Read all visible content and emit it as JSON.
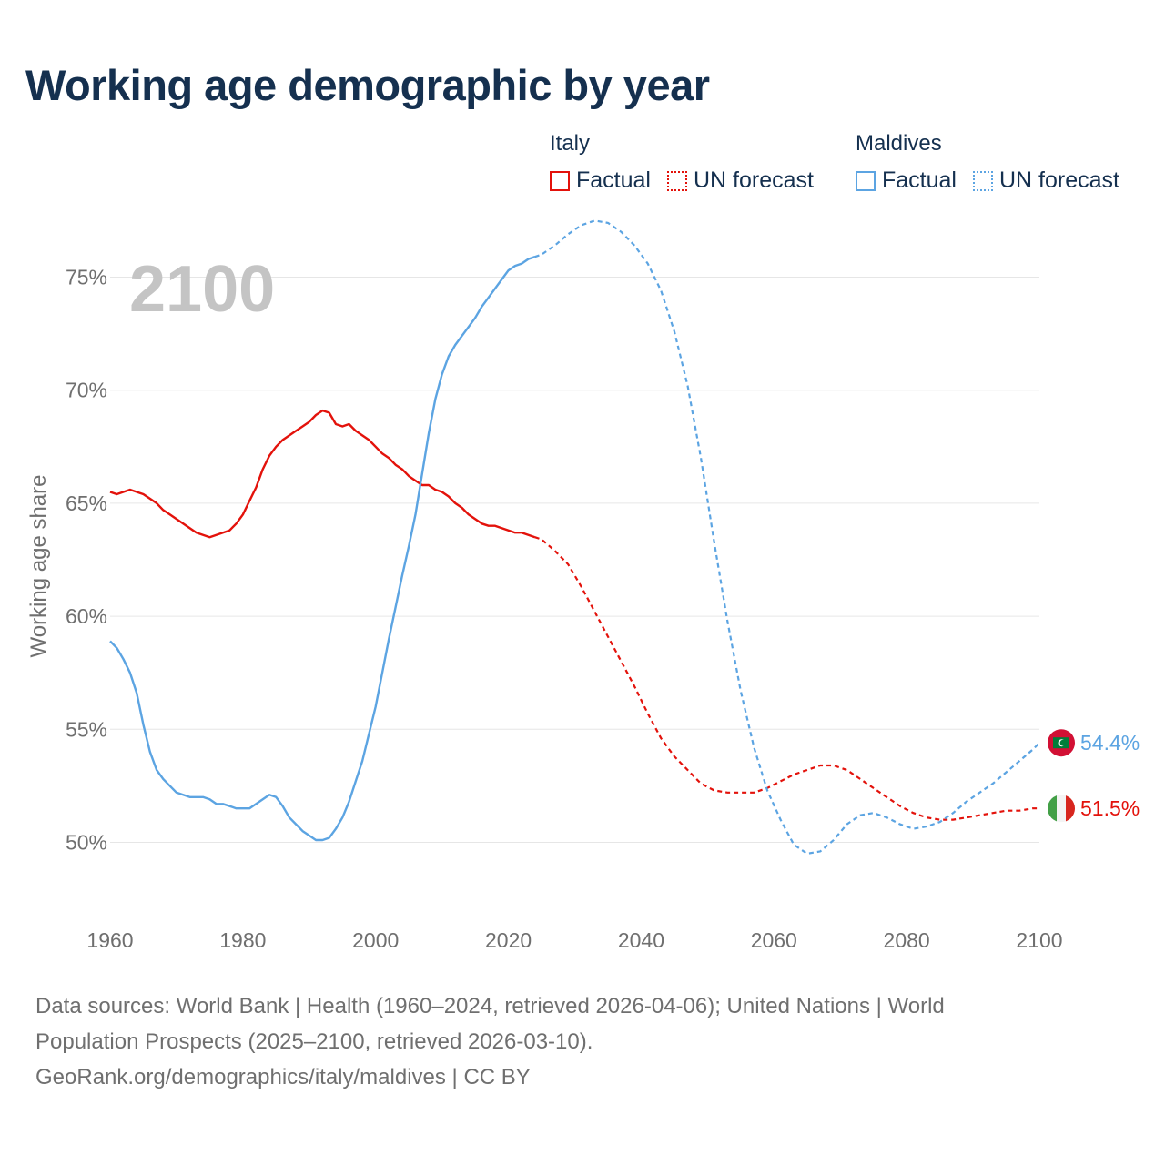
{
  "title": "Working age demographic by year",
  "legend": {
    "groups": [
      {
        "country": "Italy",
        "factual": "Factual",
        "forecast": "UN forecast",
        "color": "#e3120b"
      },
      {
        "country": "Maldives",
        "factual": "Factual",
        "forecast": "UN forecast",
        "color": "#5ca4e2"
      }
    ]
  },
  "year_watermark": "2100",
  "footer": {
    "line1": "Data sources: World Bank | Health (1960–2024, retrieved 2026-04-06); United Nations | World",
    "line2": "Population Prospects (2025–2100, retrieved 2026-03-10).",
    "line3": "GeoRank.org/demographics/italy/maldives | CC BY"
  },
  "colors": {
    "italy": "#e3120b",
    "maldives": "#5ca4e2",
    "grid": "#e6e6e6",
    "axis_text": "#6f6f6f",
    "title": "#15304f"
  },
  "chart_data": {
    "type": "line",
    "ylabel": "Working age share",
    "xlabel": "",
    "xlim": [
      1960,
      2100
    ],
    "ylim": [
      47,
      78
    ],
    "x_ticks": [
      1960,
      1980,
      2000,
      2020,
      2040,
      2060,
      2080,
      2100
    ],
    "y_ticks": [
      50,
      55,
      60,
      65,
      70,
      75
    ],
    "y_tick_labels": [
      "50%",
      "55%",
      "60%",
      "65%",
      "70%",
      "75%"
    ],
    "factual_range": [
      1960,
      2024
    ],
    "forecast_range": [
      2025,
      2100
    ],
    "series": [
      {
        "name": "Italy",
        "color": "#e3120b",
        "end_label": "51.5%",
        "flag_icon": "italy-flag-icon",
        "points": [
          [
            1960,
            65.5
          ],
          [
            1961,
            65.4
          ],
          [
            1962,
            65.5
          ],
          [
            1963,
            65.6
          ],
          [
            1964,
            65.5
          ],
          [
            1965,
            65.4
          ],
          [
            1966,
            65.2
          ],
          [
            1967,
            65.0
          ],
          [
            1968,
            64.7
          ],
          [
            1969,
            64.5
          ],
          [
            1970,
            64.3
          ],
          [
            1971,
            64.1
          ],
          [
            1972,
            63.9
          ],
          [
            1973,
            63.7
          ],
          [
            1974,
            63.6
          ],
          [
            1975,
            63.5
          ],
          [
            1976,
            63.6
          ],
          [
            1977,
            63.7
          ],
          [
            1978,
            63.8
          ],
          [
            1979,
            64.1
          ],
          [
            1980,
            64.5
          ],
          [
            1981,
            65.1
          ],
          [
            1982,
            65.7
          ],
          [
            1983,
            66.5
          ],
          [
            1984,
            67.1
          ],
          [
            1985,
            67.5
          ],
          [
            1986,
            67.8
          ],
          [
            1987,
            68.0
          ],
          [
            1988,
            68.2
          ],
          [
            1989,
            68.4
          ],
          [
            1990,
            68.6
          ],
          [
            1991,
            68.9
          ],
          [
            1992,
            69.1
          ],
          [
            1993,
            69.0
          ],
          [
            1994,
            68.5
          ],
          [
            1995,
            68.4
          ],
          [
            1996,
            68.5
          ],
          [
            1997,
            68.2
          ],
          [
            1998,
            68.0
          ],
          [
            1999,
            67.8
          ],
          [
            2000,
            67.5
          ],
          [
            2001,
            67.2
          ],
          [
            2002,
            67.0
          ],
          [
            2003,
            66.7
          ],
          [
            2004,
            66.5
          ],
          [
            2005,
            66.2
          ],
          [
            2006,
            66.0
          ],
          [
            2007,
            65.8
          ],
          [
            2008,
            65.8
          ],
          [
            2009,
            65.6
          ],
          [
            2010,
            65.5
          ],
          [
            2011,
            65.3
          ],
          [
            2012,
            65.0
          ],
          [
            2013,
            64.8
          ],
          [
            2014,
            64.5
          ],
          [
            2015,
            64.3
          ],
          [
            2016,
            64.1
          ],
          [
            2017,
            64.0
          ],
          [
            2018,
            64.0
          ],
          [
            2019,
            63.9
          ],
          [
            2020,
            63.8
          ],
          [
            2021,
            63.7
          ],
          [
            2022,
            63.7
          ],
          [
            2023,
            63.6
          ],
          [
            2024,
            63.5
          ],
          [
            2025,
            63.4
          ],
          [
            2027,
            62.9
          ],
          [
            2029,
            62.3
          ],
          [
            2031,
            61.3
          ],
          [
            2033,
            60.2
          ],
          [
            2035,
            59.1
          ],
          [
            2037,
            58.0
          ],
          [
            2039,
            56.9
          ],
          [
            2041,
            55.7
          ],
          [
            2043,
            54.6
          ],
          [
            2045,
            53.8
          ],
          [
            2047,
            53.2
          ],
          [
            2049,
            52.6
          ],
          [
            2051,
            52.3
          ],
          [
            2053,
            52.2
          ],
          [
            2055,
            52.2
          ],
          [
            2057,
            52.2
          ],
          [
            2059,
            52.4
          ],
          [
            2061,
            52.7
          ],
          [
            2063,
            53.0
          ],
          [
            2065,
            53.2
          ],
          [
            2067,
            53.4
          ],
          [
            2069,
            53.4
          ],
          [
            2071,
            53.2
          ],
          [
            2073,
            52.8
          ],
          [
            2075,
            52.4
          ],
          [
            2077,
            52.0
          ],
          [
            2079,
            51.6
          ],
          [
            2081,
            51.3
          ],
          [
            2083,
            51.1
          ],
          [
            2085,
            51.0
          ],
          [
            2087,
            51.0
          ],
          [
            2089,
            51.1
          ],
          [
            2091,
            51.2
          ],
          [
            2093,
            51.3
          ],
          [
            2095,
            51.4
          ],
          [
            2097,
            51.4
          ],
          [
            2099,
            51.5
          ],
          [
            2100,
            51.5
          ]
        ]
      },
      {
        "name": "Maldives",
        "color": "#5ca4e2",
        "end_label": "54.4%",
        "flag_icon": "maldives-flag-icon",
        "points": [
          [
            1960,
            58.9
          ],
          [
            1961,
            58.6
          ],
          [
            1962,
            58.1
          ],
          [
            1963,
            57.5
          ],
          [
            1964,
            56.6
          ],
          [
            1965,
            55.2
          ],
          [
            1966,
            54.0
          ],
          [
            1967,
            53.2
          ],
          [
            1968,
            52.8
          ],
          [
            1969,
            52.5
          ],
          [
            1970,
            52.2
          ],
          [
            1971,
            52.1
          ],
          [
            1972,
            52.0
          ],
          [
            1973,
            52.0
          ],
          [
            1974,
            52.0
          ],
          [
            1975,
            51.9
          ],
          [
            1976,
            51.7
          ],
          [
            1977,
            51.7
          ],
          [
            1978,
            51.6
          ],
          [
            1979,
            51.5
          ],
          [
            1980,
            51.5
          ],
          [
            1981,
            51.5
          ],
          [
            1982,
            51.7
          ],
          [
            1983,
            51.9
          ],
          [
            1984,
            52.1
          ],
          [
            1985,
            52.0
          ],
          [
            1986,
            51.6
          ],
          [
            1987,
            51.1
          ],
          [
            1988,
            50.8
          ],
          [
            1989,
            50.5
          ],
          [
            1990,
            50.3
          ],
          [
            1991,
            50.1
          ],
          [
            1992,
            50.1
          ],
          [
            1993,
            50.2
          ],
          [
            1994,
            50.6
          ],
          [
            1995,
            51.1
          ],
          [
            1996,
            51.8
          ],
          [
            1997,
            52.7
          ],
          [
            1998,
            53.6
          ],
          [
            1999,
            54.8
          ],
          [
            2000,
            56.0
          ],
          [
            2001,
            57.5
          ],
          [
            2002,
            59.0
          ],
          [
            2003,
            60.4
          ],
          [
            2004,
            61.8
          ],
          [
            2005,
            63.1
          ],
          [
            2006,
            64.5
          ],
          [
            2007,
            66.3
          ],
          [
            2008,
            68.1
          ],
          [
            2009,
            69.6
          ],
          [
            2010,
            70.7
          ],
          [
            2011,
            71.5
          ],
          [
            2012,
            72.0
          ],
          [
            2013,
            72.4
          ],
          [
            2014,
            72.8
          ],
          [
            2015,
            73.2
          ],
          [
            2016,
            73.7
          ],
          [
            2017,
            74.1
          ],
          [
            2018,
            74.5
          ],
          [
            2019,
            74.9
          ],
          [
            2020,
            75.3
          ],
          [
            2021,
            75.5
          ],
          [
            2022,
            75.6
          ],
          [
            2023,
            75.8
          ],
          [
            2024,
            75.9
          ],
          [
            2025,
            76.0
          ],
          [
            2027,
            76.4
          ],
          [
            2029,
            76.9
          ],
          [
            2031,
            77.3
          ],
          [
            2033,
            77.5
          ],
          [
            2035,
            77.4
          ],
          [
            2037,
            77.0
          ],
          [
            2039,
            76.4
          ],
          [
            2041,
            75.6
          ],
          [
            2043,
            74.4
          ],
          [
            2045,
            72.6
          ],
          [
            2047,
            70.2
          ],
          [
            2049,
            67.0
          ],
          [
            2051,
            63.3
          ],
          [
            2053,
            59.8
          ],
          [
            2055,
            56.7
          ],
          [
            2057,
            54.2
          ],
          [
            2059,
            52.3
          ],
          [
            2061,
            51.0
          ],
          [
            2063,
            49.9
          ],
          [
            2065,
            49.5
          ],
          [
            2067,
            49.6
          ],
          [
            2069,
            50.1
          ],
          [
            2071,
            50.8
          ],
          [
            2073,
            51.2
          ],
          [
            2075,
            51.3
          ],
          [
            2077,
            51.1
          ],
          [
            2079,
            50.8
          ],
          [
            2081,
            50.6
          ],
          [
            2083,
            50.7
          ],
          [
            2085,
            50.9
          ],
          [
            2087,
            51.3
          ],
          [
            2089,
            51.8
          ],
          [
            2091,
            52.2
          ],
          [
            2093,
            52.6
          ],
          [
            2095,
            53.1
          ],
          [
            2097,
            53.6
          ],
          [
            2099,
            54.1
          ],
          [
            2100,
            54.4
          ]
        ]
      }
    ]
  }
}
